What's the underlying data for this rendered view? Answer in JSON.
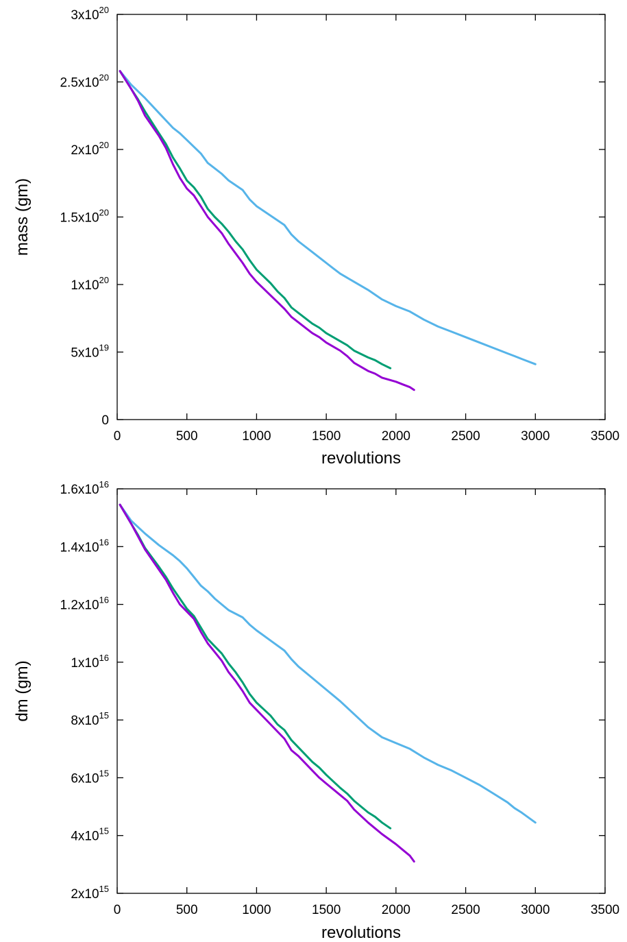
{
  "chart_data": [
    {
      "type": "line",
      "xlabel": "revolutions",
      "ylabel": "mass (gm)",
      "xlim": [
        0,
        3500
      ],
      "ylim": [
        0,
        3e+20
      ],
      "x_ticks": [
        {
          "value": 0,
          "label": "0"
        },
        {
          "value": 500,
          "label": "500"
        },
        {
          "value": 1000,
          "label": "1000"
        },
        {
          "value": 1500,
          "label": "1500"
        },
        {
          "value": 2000,
          "label": "2000"
        },
        {
          "value": 2500,
          "label": "2500"
        },
        {
          "value": 3000,
          "label": "3000"
        },
        {
          "value": 3500,
          "label": "3500"
        }
      ],
      "y_ticks": [
        {
          "value": 0,
          "mant": "0",
          "exp": ""
        },
        {
          "value": 5e+19,
          "mant": "5x10",
          "exp": "19"
        },
        {
          "value": 1e+20,
          "mant": "1x10",
          "exp": "20"
        },
        {
          "value": 1.5e+20,
          "mant": "1.5x10",
          "exp": "20"
        },
        {
          "value": 2e+20,
          "mant": "2x10",
          "exp": "20"
        },
        {
          "value": 2.5e+20,
          "mant": "2.5x10",
          "exp": "20"
        },
        {
          "value": 3e+20,
          "mant": "3x10",
          "exp": "20"
        }
      ],
      "series": [
        {
          "color": "#56b4e9",
          "x": [
            20,
            100,
            200,
            300,
            400,
            450,
            500,
            550,
            600,
            650,
            700,
            750,
            800,
            900,
            950,
            1000,
            1100,
            1200,
            1250,
            1300,
            1400,
            1500,
            1550,
            1600,
            1700,
            1800,
            1900,
            2000,
            2100,
            2200,
            2300,
            2400,
            2500,
            2600,
            2700,
            2800,
            2850,
            2900,
            3000
          ],
          "y": [
            2.58e+20,
            2.48e+20,
            2.38e+20,
            2.27e+20,
            2.16e+20,
            2.12e+20,
            2.07e+20,
            2.02e+20,
            1.97e+20,
            1.9e+20,
            1.86e+20,
            1.82e+20,
            1.77e+20,
            1.7e+20,
            1.63e+20,
            1.58e+20,
            1.51e+20,
            1.44e+20,
            1.37e+20,
            1.32e+20,
            1.24e+20,
            1.16e+20,
            1.12e+20,
            1.08e+20,
            1.02e+20,
            9.6e+19,
            8.9e+19,
            8.4e+19,
            8e+19,
            7.4e+19,
            6.9e+19,
            6.5e+19,
            6.1e+19,
            5.7e+19,
            5.3e+19,
            4.9e+19,
            4.7e+19,
            4.5e+19,
            4.1e+19
          ]
        },
        {
          "color": "#009e73",
          "x": [
            20,
            100,
            150,
            200,
            300,
            350,
            400,
            450,
            500,
            550,
            600,
            650,
            700,
            750,
            800,
            850,
            900,
            950,
            1000,
            1100,
            1150,
            1200,
            1250,
            1300,
            1400,
            1450,
            1500,
            1600,
            1650,
            1700,
            1800,
            1850,
            1900,
            1960
          ],
          "y": [
            2.58e+20,
            2.45e+20,
            2.37e+20,
            2.28e+20,
            2.12e+20,
            2.04e+20,
            1.94e+20,
            1.86e+20,
            1.77e+20,
            1.72e+20,
            1.65e+20,
            1.56e+20,
            1.5e+20,
            1.45e+20,
            1.39e+20,
            1.32e+20,
            1.26e+20,
            1.18e+20,
            1.11e+20,
            1.01e+20,
            9.5e+19,
            9e+19,
            8.3e+19,
            7.9e+19,
            7.1e+19,
            6.8e+19,
            6.4e+19,
            5.8e+19,
            5.5e+19,
            5.1e+19,
            4.6e+19,
            4.4e+19,
            4.1e+19,
            3.8e+19
          ]
        },
        {
          "color": "#9400d3",
          "x": [
            20,
            100,
            150,
            200,
            300,
            350,
            400,
            450,
            500,
            550,
            600,
            650,
            700,
            750,
            800,
            850,
            900,
            950,
            1000,
            1100,
            1150,
            1200,
            1250,
            1300,
            1400,
            1450,
            1500,
            1600,
            1650,
            1700,
            1800,
            1850,
            1900,
            2000,
            2050,
            2100,
            2130
          ],
          "y": [
            2.58e+20,
            2.45e+20,
            2.36e+20,
            2.25e+20,
            2.1e+20,
            2.01e+20,
            1.89e+20,
            1.79e+20,
            1.71e+20,
            1.66e+20,
            1.58e+20,
            1.5e+20,
            1.44e+20,
            1.38e+20,
            1.3e+20,
            1.23e+20,
            1.16e+20,
            1.08e+20,
            1.02e+20,
            9.2e+19,
            8.7e+19,
            8.2e+19,
            7.6e+19,
            7.2e+19,
            6.4e+19,
            6.1e+19,
            5.7e+19,
            5.1e+19,
            4.7e+19,
            4.2e+19,
            3.6e+19,
            3.4e+19,
            3.1e+19,
            2.8e+19,
            2.6e+19,
            2.4e+19,
            2.2e+19
          ]
        }
      ]
    },
    {
      "type": "line",
      "xlabel": "revolutions",
      "ylabel": "dm (gm)",
      "xlim": [
        0,
        3500
      ],
      "ylim": [
        2000000000000000.0,
        1.6e+16
      ],
      "x_ticks": [
        {
          "value": 0,
          "label": "0"
        },
        {
          "value": 500,
          "label": "500"
        },
        {
          "value": 1000,
          "label": "1000"
        },
        {
          "value": 1500,
          "label": "1500"
        },
        {
          "value": 2000,
          "label": "2000"
        },
        {
          "value": 2500,
          "label": "2500"
        },
        {
          "value": 3000,
          "label": "3000"
        },
        {
          "value": 3500,
          "label": "3500"
        }
      ],
      "y_ticks": [
        {
          "value": 2000000000000000.0,
          "mant": "2x10",
          "exp": "15"
        },
        {
          "value": 4000000000000000.0,
          "mant": "4x10",
          "exp": "15"
        },
        {
          "value": 6000000000000000.0,
          "mant": "6x10",
          "exp": "15"
        },
        {
          "value": 8000000000000000.0,
          "mant": "8x10",
          "exp": "15"
        },
        {
          "value": 1e+16,
          "mant": "1x10",
          "exp": "16"
        },
        {
          "value": 1.2e+16,
          "mant": "1.2x10",
          "exp": "16"
        },
        {
          "value": 1.4e+16,
          "mant": "1.4x10",
          "exp": "16"
        },
        {
          "value": 1.6e+16,
          "mant": "1.6x10",
          "exp": "16"
        }
      ],
      "series": [
        {
          "color": "#56b4e9",
          "x": [
            20,
            100,
            200,
            300,
            400,
            450,
            500,
            550,
            600,
            650,
            700,
            750,
            800,
            900,
            950,
            1000,
            1100,
            1200,
            1250,
            1300,
            1400,
            1500,
            1550,
            1600,
            1700,
            1800,
            1900,
            2000,
            2100,
            2200,
            2300,
            2400,
            2500,
            2600,
            2700,
            2800,
            2850,
            2900,
            3000
          ],
          "y": [
            1.545e+16,
            1.49e+16,
            1.445e+16,
            1.405e+16,
            1.37e+16,
            1.35e+16,
            1.325e+16,
            1.295e+16,
            1.265e+16,
            1.245e+16,
            1.22e+16,
            1.2e+16,
            1.18e+16,
            1.155e+16,
            1.13e+16,
            1.11e+16,
            1.075e+16,
            1.04e+16,
            1.01e+16,
            9850000000000000.0,
            9450000000000000.0,
            9050000000000000.0,
            8850000000000000.0,
            8650000000000000.0,
            8200000000000000.0,
            7750000000000000.0,
            7400000000000000.0,
            7200000000000000.0,
            7000000000000000.0,
            6700000000000000.0,
            6450000000000000.0,
            6250000000000000.0,
            6000000000000000.0,
            5750000000000000.0,
            5450000000000000.0,
            5150000000000000.0,
            4950000000000000.0,
            4800000000000000.0,
            4450000000000000.0
          ]
        },
        {
          "color": "#009e73",
          "x": [
            20,
            100,
            150,
            200,
            300,
            350,
            400,
            450,
            500,
            550,
            600,
            650,
            700,
            750,
            800,
            850,
            900,
            950,
            1000,
            1100,
            1150,
            1200,
            1250,
            1300,
            1400,
            1450,
            1500,
            1600,
            1650,
            1700,
            1800,
            1850,
            1900,
            1960
          ],
          "y": [
            1.545e+16,
            1.48e+16,
            1.44e+16,
            1.395e+16,
            1.33e+16,
            1.295e+16,
            1.255e+16,
            1.22e+16,
            1.185e+16,
            1.16e+16,
            1.12e+16,
            1.08e+16,
            1.055e+16,
            1.03e+16,
            9950000000000000.0,
            9650000000000000.0,
            9300000000000000.0,
            8900000000000000.0,
            8600000000000000.0,
            8150000000000000.0,
            7850000000000000.0,
            7650000000000000.0,
            7300000000000000.0,
            7050000000000000.0,
            6550000000000000.0,
            6350000000000000.0,
            6100000000000000.0,
            5650000000000000.0,
            5450000000000000.0,
            5200000000000000.0,
            4800000000000000.0,
            4650000000000000.0,
            4450000000000000.0,
            4250000000000000.0
          ]
        },
        {
          "color": "#9400d3",
          "x": [
            20,
            100,
            150,
            200,
            300,
            350,
            400,
            450,
            500,
            550,
            600,
            650,
            700,
            750,
            800,
            850,
            900,
            950,
            1000,
            1100,
            1150,
            1200,
            1250,
            1300,
            1400,
            1450,
            1500,
            1600,
            1650,
            1700,
            1800,
            1850,
            1900,
            2000,
            2050,
            2100,
            2130
          ],
          "y": [
            1.545e+16,
            1.48e+16,
            1.435e+16,
            1.39e+16,
            1.32e+16,
            1.285e+16,
            1.24e+16,
            1.2e+16,
            1.175e+16,
            1.15e+16,
            1.105e+16,
            1.065e+16,
            1.035e+16,
            1.005e+16,
            9650000000000000.0,
            9350000000000000.0,
            9000000000000000.0,
            8600000000000000.0,
            8350000000000000.0,
            7850000000000000.0,
            7600000000000000.0,
            7350000000000000.0,
            6950000000000000.0,
            6750000000000000.0,
            6250000000000000.0,
            6000000000000000.0,
            5800000000000000.0,
            5400000000000000.0,
            5200000000000000.0,
            4900000000000000.0,
            4450000000000000.0,
            4250000000000000.0,
            4050000000000000.0,
            3700000000000000.0,
            3500000000000000.0,
            3300000000000000.0,
            3100000000000000.0
          ]
        }
      ]
    }
  ]
}
